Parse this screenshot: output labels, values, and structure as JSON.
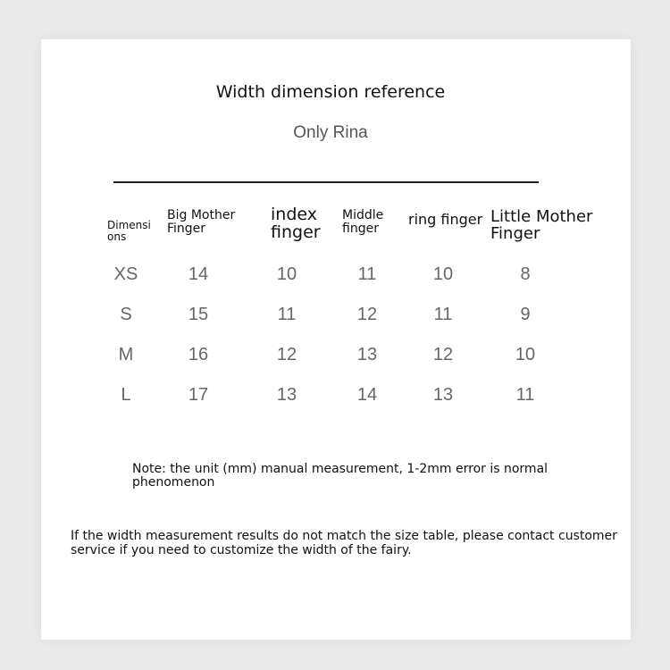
{
  "title": "Width dimension reference",
  "brand": "Only Rina",
  "table": {
    "headers": [
      "Dimensi ons",
      "Big Mother Finger",
      "index finger",
      "Middle finger",
      "ring finger",
      "Little Mother Finger"
    ],
    "rows": [
      [
        "XS",
        "14",
        "10",
        "11",
        "10",
        "8"
      ],
      [
        "S",
        "15",
        "11",
        "12",
        "11",
        "9"
      ],
      [
        "M",
        "16",
        "12",
        "13",
        "12",
        "10"
      ],
      [
        "L",
        "17",
        "13",
        "14",
        "13",
        "11"
      ]
    ]
  },
  "note": "Note: the unit (mm) manual measurement, 1-2mm error is normal phenomenon",
  "footer": "If the width measurement results do not match the size table, please contact customer service if you need to customize the width of the fairy."
}
